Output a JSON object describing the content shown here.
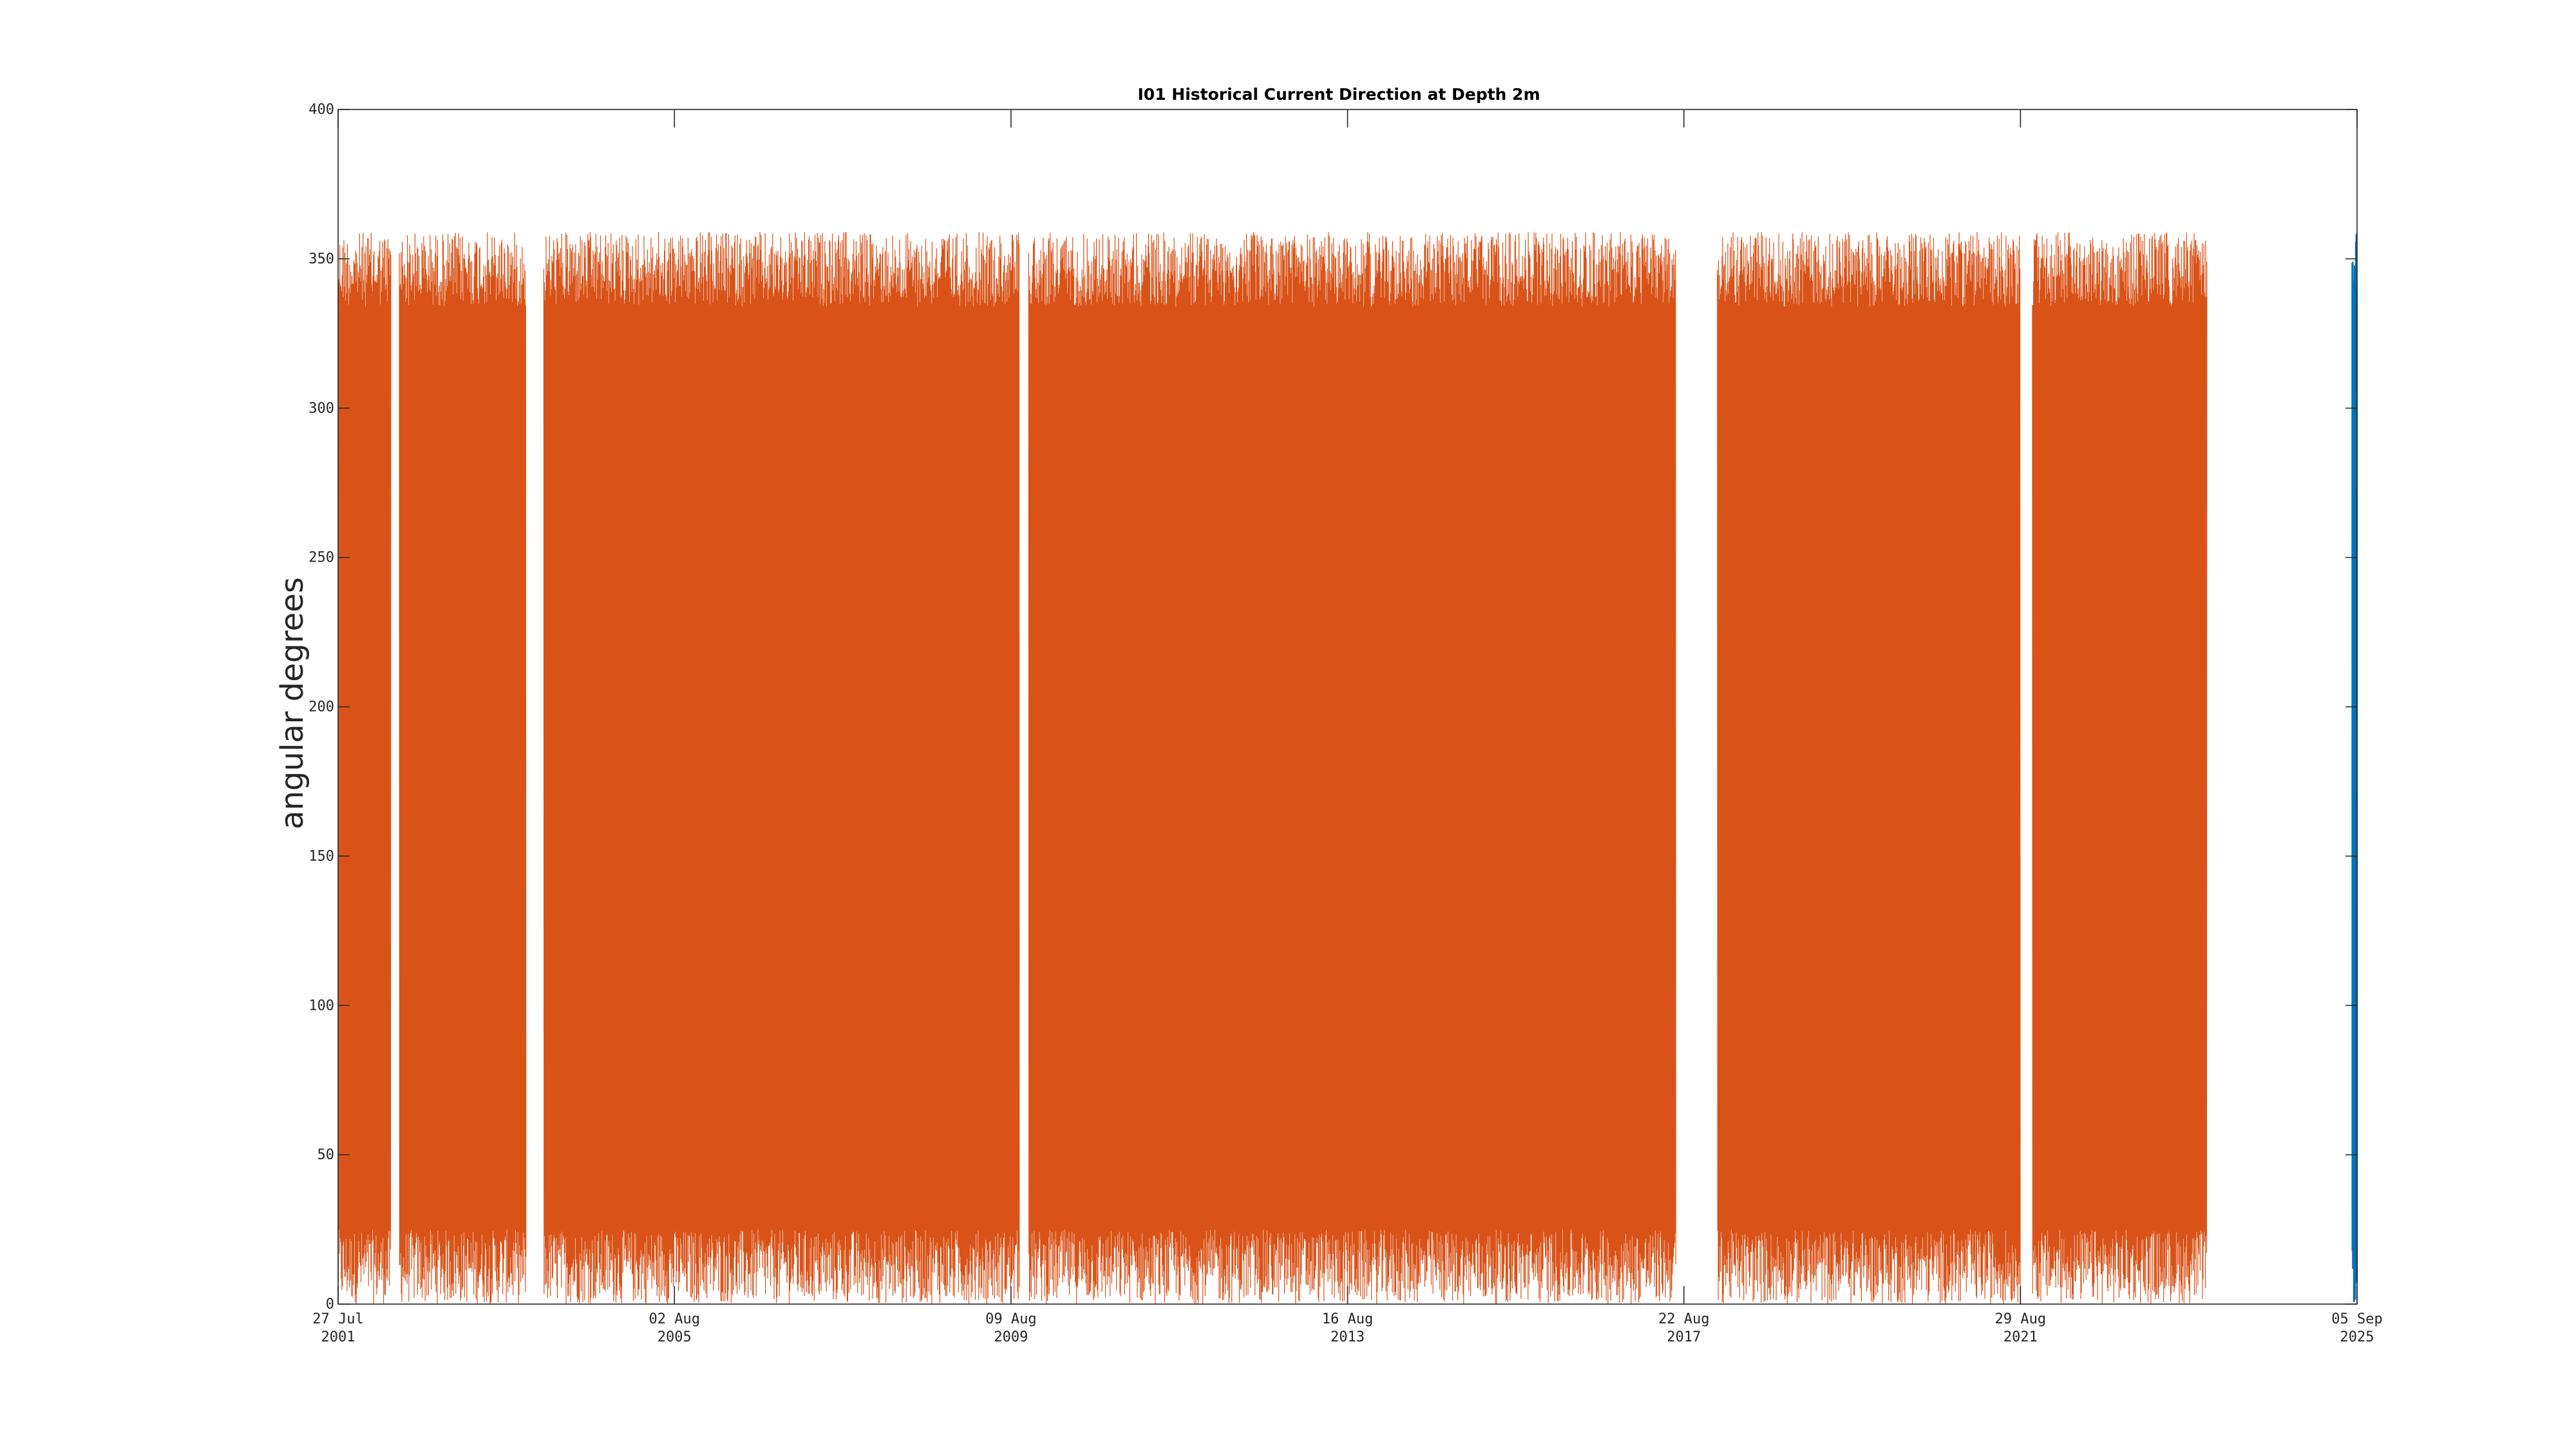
{
  "chart_data": {
    "type": "line",
    "title": "I01 Historical Current Direction at Depth 2m",
    "ylabel": "angular degrees",
    "xlabel": "",
    "ylim": [
      0,
      400
    ],
    "yticks": [
      0,
      50,
      100,
      150,
      200,
      250,
      300,
      350,
      400
    ],
    "xlim": [
      "2001-07-27",
      "2025-09-05"
    ],
    "xticks": [
      {
        "date": "2001-07-27",
        "line1": "27 Jul",
        "line2": "2001"
      },
      {
        "date": "2005-08-02",
        "line1": "02 Aug",
        "line2": "2005"
      },
      {
        "date": "2009-08-09",
        "line1": "09 Aug",
        "line2": "2009"
      },
      {
        "date": "2013-08-16",
        "line1": "16 Aug",
        "line2": "2013"
      },
      {
        "date": "2017-08-22",
        "line1": "22 Aug",
        "line2": "2017"
      },
      {
        "date": "2021-08-29",
        "line1": "29 Aug",
        "line2": "2021"
      },
      {
        "date": "2025-09-05",
        "line1": "05 Sep",
        "line2": "2025"
      }
    ],
    "grid": false,
    "series": [
      {
        "color": "#D95319",
        "value_range": [
          0,
          359
        ],
        "segments": [
          [
            "2001-07-27",
            "2002-03-15"
          ],
          [
            "2002-04-20",
            "2003-10-25"
          ],
          [
            "2004-01-10",
            "2009-09-15"
          ],
          [
            "2009-10-25",
            "2017-07-18"
          ],
          [
            "2018-01-15",
            "2021-08-28"
          ],
          [
            "2021-10-20",
            "2023-11-20"
          ]
        ]
      },
      {
        "color": "#0072BD",
        "value_range": [
          0,
          359
        ],
        "segments": [
          [
            "2025-08-15",
            "2025-09-05"
          ]
        ]
      }
    ]
  }
}
